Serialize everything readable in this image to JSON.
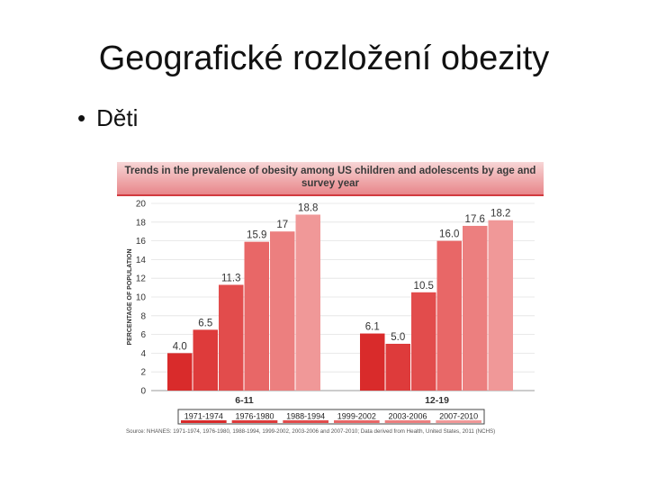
{
  "slide": {
    "title": "Geografické rozložení obezity",
    "bullet": "Děti"
  },
  "chart_data": {
    "type": "bar",
    "title": "Trends in the prevalence of obesity among US children and adolescents by age and survey year",
    "ylabel": "PERCENTAGE OF POPULATION",
    "ylim": [
      0,
      20
    ],
    "yticks": [
      0,
      2,
      4,
      6,
      8,
      10,
      12,
      14,
      16,
      18,
      20
    ],
    "groups": [
      "6-11",
      "12-19"
    ],
    "survey_years": [
      "1971-1974",
      "1976-1980",
      "1988-1994",
      "1999-2002",
      "2003-2006",
      "2007-2010"
    ],
    "series": [
      {
        "name": "6-11",
        "values": [
          4.0,
          6.5,
          11.3,
          15.9,
          17,
          18.8
        ],
        "labels": [
          "4.0",
          "6.5",
          "11.3",
          "15.9",
          "17",
          "18.8"
        ]
      },
      {
        "name": "12-19",
        "values": [
          6.1,
          5.0,
          10.5,
          16.0,
          17.6,
          18.2
        ],
        "labels": [
          "6.1",
          "5.0",
          "10.5",
          "16.0",
          "17.6",
          "18.2"
        ]
      }
    ],
    "colors": [
      "#d92b2b",
      "#de3b3b",
      "#e24c4c",
      "#e86767",
      "#ec7f7f",
      "#f09898"
    ],
    "source": "Source: NHANES: 1971-1974, 1976-1980, 1988-1994, 1999-2002, 2003-2006 and 2007-2010; Data derived from Health, United States, 2011 (NCHS)"
  }
}
